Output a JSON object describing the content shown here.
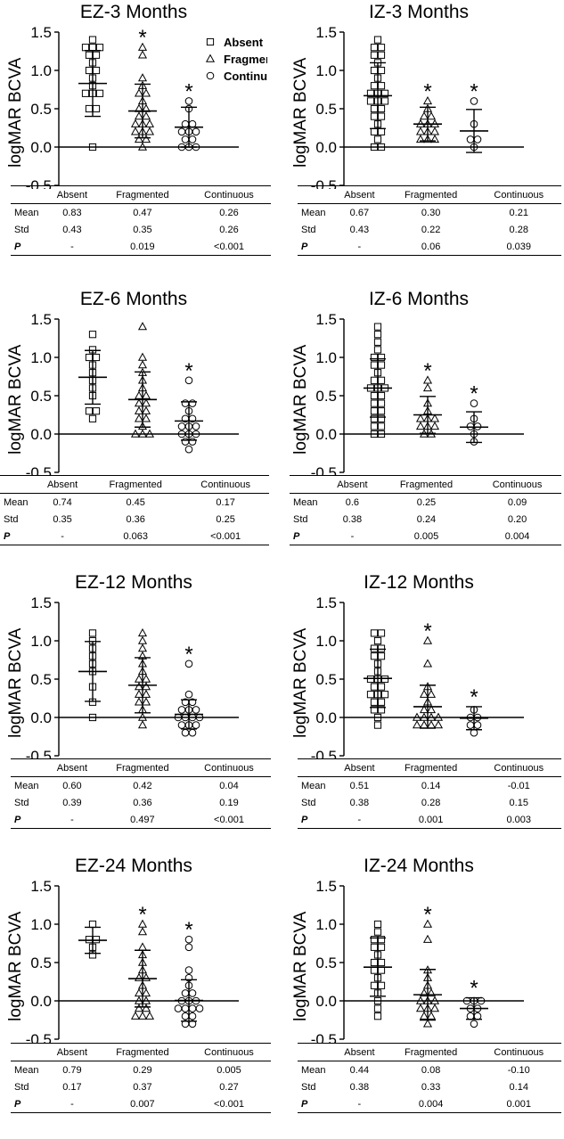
{
  "chart_data": [
    {
      "type": "scatter",
      "title": "EZ-3 Months",
      "ylabel": "logMAR BCVA",
      "ylim": [
        -0.6,
        1.55
      ],
      "yticks": [
        "1.5",
        "1.0",
        "0.5",
        "0.0",
        "-0.5"
      ],
      "show_legend": true,
      "legend": [
        "Absent",
        "Fragmented",
        "Continuous"
      ],
      "series": [
        {
          "name": "Absent",
          "marker": "square",
          "mean": 0.83,
          "sd": 0.43,
          "star": false,
          "values": [
            1.4,
            1.3,
            1.3,
            1.3,
            1.2,
            1.2,
            1.1,
            1.0,
            1.0,
            0.9,
            0.8,
            0.7,
            0.7,
            0.7,
            0.5,
            0.5,
            0.0
          ]
        },
        {
          "name": "Fragmented",
          "marker": "triangle",
          "mean": 0.47,
          "sd": 0.35,
          "star": true,
          "values": [
            1.3,
            1.2,
            0.9,
            0.8,
            0.7,
            0.7,
            0.6,
            0.5,
            0.5,
            0.4,
            0.4,
            0.3,
            0.3,
            0.3,
            0.2,
            0.2,
            0.2,
            0.1,
            0.1,
            0.0
          ]
        },
        {
          "name": "Continuous",
          "marker": "circle",
          "mean": 0.26,
          "sd": 0.26,
          "star": true,
          "values": [
            0.6,
            0.5,
            0.3,
            0.3,
            0.2,
            0.2,
            0.2,
            0.1,
            0.1,
            0.0,
            0.0,
            0.0
          ]
        }
      ],
      "table": {
        "headers": [
          "Absent",
          "Fragmented",
          "Continuous"
        ],
        "rows": [
          {
            "label": "Mean",
            "values": [
              "0.83",
              "0.47",
              "0.26"
            ]
          },
          {
            "label": "Std",
            "values": [
              "0.43",
              "0.35",
              "0.26"
            ]
          },
          {
            "label": "P",
            "values": [
              "-",
              "0.019",
              "<0.001"
            ]
          }
        ]
      }
    },
    {
      "type": "scatter",
      "title": "IZ-3 Months",
      "ylabel": "logMAR BCVA",
      "ylim": [
        -0.6,
        1.55
      ],
      "yticks": [
        "1.5",
        "1.0",
        "0.5",
        "0.0",
        "-0.5"
      ],
      "show_legend": false,
      "series": [
        {
          "name": "Absent",
          "marker": "square",
          "mean": 0.67,
          "sd": 0.43,
          "star": false,
          "values": [
            1.4,
            1.3,
            1.3,
            1.2,
            1.2,
            1.1,
            1.0,
            1.0,
            0.9,
            0.8,
            0.8,
            0.7,
            0.7,
            0.7,
            0.6,
            0.6,
            0.6,
            0.5,
            0.5,
            0.4,
            0.4,
            0.3,
            0.2,
            0.2,
            0.1,
            0.0,
            0.0
          ]
        },
        {
          "name": "Fragmented",
          "marker": "triangle",
          "mean": 0.3,
          "sd": 0.22,
          "star": true,
          "values": [
            0.6,
            0.5,
            0.4,
            0.4,
            0.3,
            0.3,
            0.3,
            0.2,
            0.2,
            0.2,
            0.1,
            0.1,
            0.1
          ]
        },
        {
          "name": "Continuous",
          "marker": "circle",
          "mean": 0.21,
          "sd": 0.28,
          "star": true,
          "values": [
            0.6,
            0.3,
            0.1,
            0.1,
            0.0
          ]
        }
      ],
      "table": {
        "headers": [
          "Absent",
          "Fragmented",
          "Continuous"
        ],
        "rows": [
          {
            "label": "Mean",
            "values": [
              "0.67",
              "0.30",
              "0.21"
            ]
          },
          {
            "label": "Std",
            "values": [
              "0.43",
              "0.22",
              "0.28"
            ]
          },
          {
            "label": "P",
            "values": [
              "-",
              "0.06",
              "0.039"
            ]
          }
        ]
      }
    },
    {
      "type": "scatter",
      "title": "EZ-6 Months",
      "ylabel": "logMAR BCVA",
      "ylim": [
        -0.6,
        1.55
      ],
      "yticks": [
        "1.5",
        "1.0",
        "0.5",
        "0.0",
        "-0.5"
      ],
      "show_legend": false,
      "series": [
        {
          "name": "Absent",
          "marker": "square",
          "mean": 0.74,
          "sd": 0.35,
          "star": false,
          "values": [
            1.3,
            1.1,
            1.0,
            1.0,
            0.9,
            0.8,
            0.7,
            0.6,
            0.5,
            0.3,
            0.3,
            0.2
          ]
        },
        {
          "name": "Fragmented",
          "marker": "triangle",
          "mean": 0.45,
          "sd": 0.36,
          "star": false,
          "values": [
            1.4,
            1.0,
            0.9,
            0.8,
            0.7,
            0.6,
            0.5,
            0.5,
            0.4,
            0.4,
            0.3,
            0.3,
            0.2,
            0.2,
            0.1,
            0.0,
            0.0,
            0.0
          ]
        },
        {
          "name": "Continuous",
          "marker": "circle",
          "mean": 0.17,
          "sd": 0.25,
          "star": true,
          "values": [
            0.7,
            0.4,
            0.4,
            0.3,
            0.2,
            0.2,
            0.1,
            0.1,
            0.1,
            0.0,
            0.0,
            0.0,
            -0.1,
            -0.1,
            -0.2
          ]
        }
      ],
      "table": {
        "headers": [
          "Absent",
          "Fragmented",
          "Continuous"
        ],
        "rows": [
          {
            "label": "Mean",
            "values": [
              "0.74",
              "0.45",
              "0.17"
            ]
          },
          {
            "label": "Std",
            "values": [
              "0.35",
              "0.36",
              "0.25"
            ]
          },
          {
            "label": "P",
            "values": [
              "-",
              "0.063",
              "<0.001"
            ]
          }
        ]
      }
    },
    {
      "type": "scatter",
      "title": "IZ-6 Months",
      "ylabel": "logMAR BCVA",
      "ylim": [
        -0.6,
        1.55
      ],
      "yticks": [
        "1.5",
        "1.0",
        "0.5",
        "0.0",
        "-0.5"
      ],
      "show_legend": false,
      "series": [
        {
          "name": "Absent",
          "marker": "square",
          "mean": 0.6,
          "sd": 0.38,
          "star": false,
          "values": [
            1.4,
            1.3,
            1.2,
            1.1,
            1.0,
            1.0,
            0.9,
            0.9,
            0.8,
            0.7,
            0.7,
            0.6,
            0.6,
            0.6,
            0.5,
            0.5,
            0.4,
            0.4,
            0.3,
            0.3,
            0.2,
            0.2,
            0.1,
            0.1,
            0.0,
            0.0
          ]
        },
        {
          "name": "Fragmented",
          "marker": "triangle",
          "mean": 0.25,
          "sd": 0.24,
          "star": true,
          "values": [
            0.7,
            0.6,
            0.4,
            0.3,
            0.2,
            0.2,
            0.2,
            0.1,
            0.1,
            0.1,
            0.0,
            0.0
          ]
        },
        {
          "name": "Continuous",
          "marker": "circle",
          "mean": 0.09,
          "sd": 0.2,
          "star": true,
          "values": [
            0.4,
            0.2,
            0.1,
            0.1,
            0.0,
            -0.1
          ]
        }
      ],
      "table": {
        "headers": [
          "Absent",
          "Fragmented",
          "Continuous"
        ],
        "rows": [
          {
            "label": "Mean",
            "values": [
              "0.6",
              "0.25",
              "0.09"
            ]
          },
          {
            "label": "Std",
            "values": [
              "0.38",
              "0.24",
              "0.20"
            ]
          },
          {
            "label": "P",
            "values": [
              "-",
              "0.005",
              "0.004"
            ]
          }
        ]
      }
    },
    {
      "type": "scatter",
      "title": "EZ-12 Months",
      "ylabel": "logMAR BCVA",
      "ylim": [
        -0.6,
        1.55
      ],
      "yticks": [
        "1.5",
        "1.0",
        "0.5",
        "0.0",
        "-0.5"
      ],
      "show_legend": false,
      "series": [
        {
          "name": "Absent",
          "marker": "square",
          "mean": 0.6,
          "sd": 0.39,
          "star": false,
          "values": [
            1.1,
            1.0,
            0.9,
            0.8,
            0.7,
            0.6,
            0.4,
            0.2,
            0.0
          ]
        },
        {
          "name": "Fragmented",
          "marker": "triangle",
          "mean": 0.42,
          "sd": 0.36,
          "star": false,
          "values": [
            1.1,
            1.0,
            0.9,
            0.8,
            0.7,
            0.6,
            0.5,
            0.5,
            0.4,
            0.4,
            0.3,
            0.3,
            0.2,
            0.2,
            0.1,
            0.0,
            -0.1
          ]
        },
        {
          "name": "Continuous",
          "marker": "circle",
          "mean": 0.04,
          "sd": 0.19,
          "star": true,
          "values": [
            0.7,
            0.3,
            0.2,
            0.2,
            0.1,
            0.1,
            0.1,
            0.0,
            0.0,
            0.0,
            0.0,
            -0.1,
            -0.1,
            -0.1,
            -0.2,
            -0.2
          ]
        }
      ],
      "table": {
        "headers": [
          "Absent",
          "Fragmented",
          "Continuous"
        ],
        "rows": [
          {
            "label": "Mean",
            "values": [
              "0.60",
              "0.42",
              "0.04"
            ]
          },
          {
            "label": "Std",
            "values": [
              "0.39",
              "0.36",
              "0.19"
            ]
          },
          {
            "label": "P",
            "values": [
              "-",
              "0.497",
              "<0.001"
            ]
          }
        ]
      }
    },
    {
      "type": "scatter",
      "title": "IZ-12 Months",
      "ylabel": "logMAR BCVA",
      "ylim": [
        -0.6,
        1.55
      ],
      "yticks": [
        "1.5",
        "1.0",
        "0.5",
        "0.0",
        "-0.5"
      ],
      "show_legend": false,
      "series": [
        {
          "name": "Absent",
          "marker": "square",
          "mean": 0.51,
          "sd": 0.38,
          "star": false,
          "values": [
            1.1,
            1.1,
            1.0,
            0.9,
            0.9,
            0.8,
            0.8,
            0.7,
            0.6,
            0.5,
            0.5,
            0.5,
            0.4,
            0.4,
            0.3,
            0.3,
            0.3,
            0.2,
            0.2,
            0.1,
            0.1,
            0.0,
            -0.1
          ]
        },
        {
          "name": "Fragmented",
          "marker": "triangle",
          "mean": 0.14,
          "sd": 0.28,
          "star": true,
          "values": [
            1.0,
            0.7,
            0.4,
            0.3,
            0.3,
            0.2,
            0.1,
            0.1,
            0.0,
            0.0,
            0.0,
            0.0,
            -0.1,
            -0.1,
            -0.1,
            -0.1
          ]
        },
        {
          "name": "Continuous",
          "marker": "circle",
          "mean": -0.01,
          "sd": 0.15,
          "star": true,
          "values": [
            0.1,
            0.0,
            0.0,
            -0.1,
            -0.1,
            -0.2
          ]
        }
      ],
      "table": {
        "headers": [
          "Absent",
          "Fragmented",
          "Continuous"
        ],
        "rows": [
          {
            "label": "Mean",
            "values": [
              "0.51",
              "0.14",
              "-0.01"
            ]
          },
          {
            "label": "Std",
            "values": [
              "0.38",
              "0.28",
              "0.15"
            ]
          },
          {
            "label": "P",
            "values": [
              "-",
              "0.001",
              "0.003"
            ]
          }
        ]
      }
    },
    {
      "type": "scatter",
      "title": "EZ-24 Months",
      "ylabel": "logMAR BCVA",
      "ylim": [
        -0.6,
        1.55
      ],
      "yticks": [
        "1.5",
        "1.0",
        "0.5",
        "0.0",
        "-0.5"
      ],
      "show_legend": false,
      "series": [
        {
          "name": "Absent",
          "marker": "square",
          "mean": 0.79,
          "sd": 0.17,
          "star": false,
          "values": [
            1.0,
            0.8,
            0.8,
            0.7,
            0.6
          ]
        },
        {
          "name": "Fragmented",
          "marker": "triangle",
          "mean": 0.29,
          "sd": 0.37,
          "star": true,
          "values": [
            1.0,
            0.9,
            0.7,
            0.6,
            0.5,
            0.4,
            0.3,
            0.3,
            0.2,
            0.1,
            0.1,
            0.0,
            0.0,
            -0.1,
            -0.1,
            -0.2,
            -0.2,
            -0.2
          ]
        },
        {
          "name": "Continuous",
          "marker": "circle",
          "mean": 0.005,
          "sd": 0.27,
          "star": true,
          "values": [
            0.8,
            0.7,
            0.4,
            0.3,
            0.2,
            0.1,
            0.1,
            0.0,
            0.0,
            0.0,
            -0.1,
            -0.1,
            -0.1,
            -0.1,
            -0.2,
            -0.2,
            -0.3,
            -0.3
          ]
        }
      ],
      "table": {
        "headers": [
          "Absent",
          "Fragmented",
          "Continuous"
        ],
        "rows": [
          {
            "label": "Mean",
            "values": [
              "0.79",
              "0.29",
              "0.005"
            ]
          },
          {
            "label": "Std",
            "values": [
              "0.17",
              "0.37",
              "0.27"
            ]
          },
          {
            "label": "P",
            "values": [
              "-",
              "0.007",
              "<0.001"
            ]
          }
        ]
      }
    },
    {
      "type": "scatter",
      "title": "IZ-24 Months",
      "ylabel": "logMAR BCVA",
      "ylim": [
        -0.6,
        1.55
      ],
      "yticks": [
        "1.5",
        "1.0",
        "0.5",
        "0.0",
        "-0.5"
      ],
      "show_legend": false,
      "series": [
        {
          "name": "Absent",
          "marker": "square",
          "mean": 0.44,
          "sd": 0.38,
          "star": false,
          "values": [
            1.0,
            0.9,
            0.8,
            0.8,
            0.7,
            0.7,
            0.6,
            0.5,
            0.5,
            0.4,
            0.4,
            0.3,
            0.2,
            0.2,
            0.1,
            0.0,
            -0.1,
            -0.2
          ]
        },
        {
          "name": "Fragmented",
          "marker": "triangle",
          "mean": 0.08,
          "sd": 0.33,
          "star": true,
          "values": [
            1.0,
            0.8,
            0.4,
            0.3,
            0.2,
            0.1,
            0.1,
            0.0,
            0.0,
            0.0,
            -0.1,
            -0.1,
            -0.1,
            -0.2,
            -0.2,
            -0.3
          ]
        },
        {
          "name": "Continuous",
          "marker": "circle",
          "mean": -0.1,
          "sd": 0.14,
          "star": true,
          "values": [
            0.0,
            0.0,
            0.0,
            -0.1,
            -0.1,
            -0.2,
            -0.2,
            -0.3
          ]
        }
      ],
      "table": {
        "headers": [
          "Absent",
          "Fragmented",
          "Continuous"
        ],
        "rows": [
          {
            "label": "Mean",
            "values": [
              "0.44",
              "0.08",
              "-0.10"
            ]
          },
          {
            "label": "Std",
            "values": [
              "0.38",
              "0.33",
              "0.14"
            ]
          },
          {
            "label": "P",
            "values": [
              "-",
              "0.004",
              "0.001"
            ]
          }
        ]
      }
    }
  ]
}
